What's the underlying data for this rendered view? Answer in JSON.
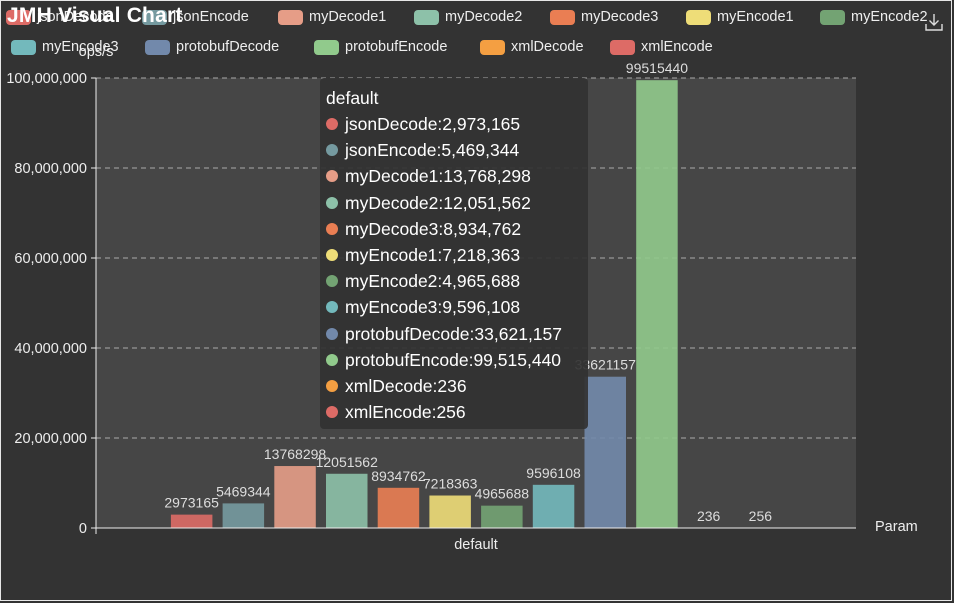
{
  "title": "JMH Visual Chart",
  "toolbox": {
    "save_icon": "download-icon"
  },
  "chart_data": {
    "type": "bar",
    "ylabel": "ops/s",
    "xlabel": "Param",
    "categories": [
      "default"
    ],
    "ylim": [
      0,
      100000000
    ],
    "yticks": [
      0,
      20000000,
      40000000,
      60000000,
      80000000,
      100000000
    ],
    "ytick_labels": [
      "0",
      "20,000,000",
      "40,000,000",
      "60,000,000",
      "80,000,000",
      "100,000,000"
    ],
    "grid": true,
    "legend_position": "top",
    "series": [
      {
        "name": "jsonDecode",
        "values": [
          2973165
        ],
        "color": "#dd6b66"
      },
      {
        "name": "jsonEncode",
        "values": [
          5469344
        ],
        "color": "#759aa0"
      },
      {
        "name": "myDecode1",
        "values": [
          13768298
        ],
        "color": "#e69d87"
      },
      {
        "name": "myDecode2",
        "values": [
          12051562
        ],
        "color": "#8dc1a9"
      },
      {
        "name": "myDecode3",
        "values": [
          8934762
        ],
        "color": "#ea7e53"
      },
      {
        "name": "myEncode1",
        "values": [
          7218363
        ],
        "color": "#eedd78"
      },
      {
        "name": "myEncode2",
        "values": [
          4965688
        ],
        "color": "#73a373"
      },
      {
        "name": "myEncode3",
        "values": [
          9596108
        ],
        "color": "#73b9bc"
      },
      {
        "name": "protobufDecode",
        "values": [
          33621157
        ],
        "color": "#7289ab"
      },
      {
        "name": "protobufEncode",
        "values": [
          99515440
        ],
        "color": "#91ca8c"
      },
      {
        "name": "xmlDecode",
        "values": [
          236
        ],
        "color": "#f49f42"
      },
      {
        "name": "xmlEncode",
        "values": [
          256
        ],
        "color": "#dd6b66"
      }
    ]
  },
  "tooltip": {
    "title": "default",
    "rows": [
      {
        "name": "jsonDecode",
        "value": "2,973,165",
        "color": "#dd6b66"
      },
      {
        "name": "jsonEncode",
        "value": "5,469,344",
        "color": "#759aa0"
      },
      {
        "name": "myDecode1",
        "value": "13,768,298",
        "color": "#e69d87"
      },
      {
        "name": "myDecode2",
        "value": "12,051,562",
        "color": "#8dc1a9"
      },
      {
        "name": "myDecode3",
        "value": "8,934,762",
        "color": "#ea7e53"
      },
      {
        "name": "myEncode1",
        "value": "7,218,363",
        "color": "#eedd78"
      },
      {
        "name": "myEncode2",
        "value": "4,965,688",
        "color": "#73a373"
      },
      {
        "name": "myEncode3",
        "value": "9,596,108",
        "color": "#73b9bc"
      },
      {
        "name": "protobufDecode",
        "value": "33,621,157",
        "color": "#7289ab"
      },
      {
        "name": "protobufEncode",
        "value": "99,515,440",
        "color": "#91ca8c"
      },
      {
        "name": "xmlDecode",
        "value": "236",
        "color": "#f49f42"
      },
      {
        "name": "xmlEncode",
        "value": "256",
        "color": "#dd6b66"
      }
    ]
  }
}
